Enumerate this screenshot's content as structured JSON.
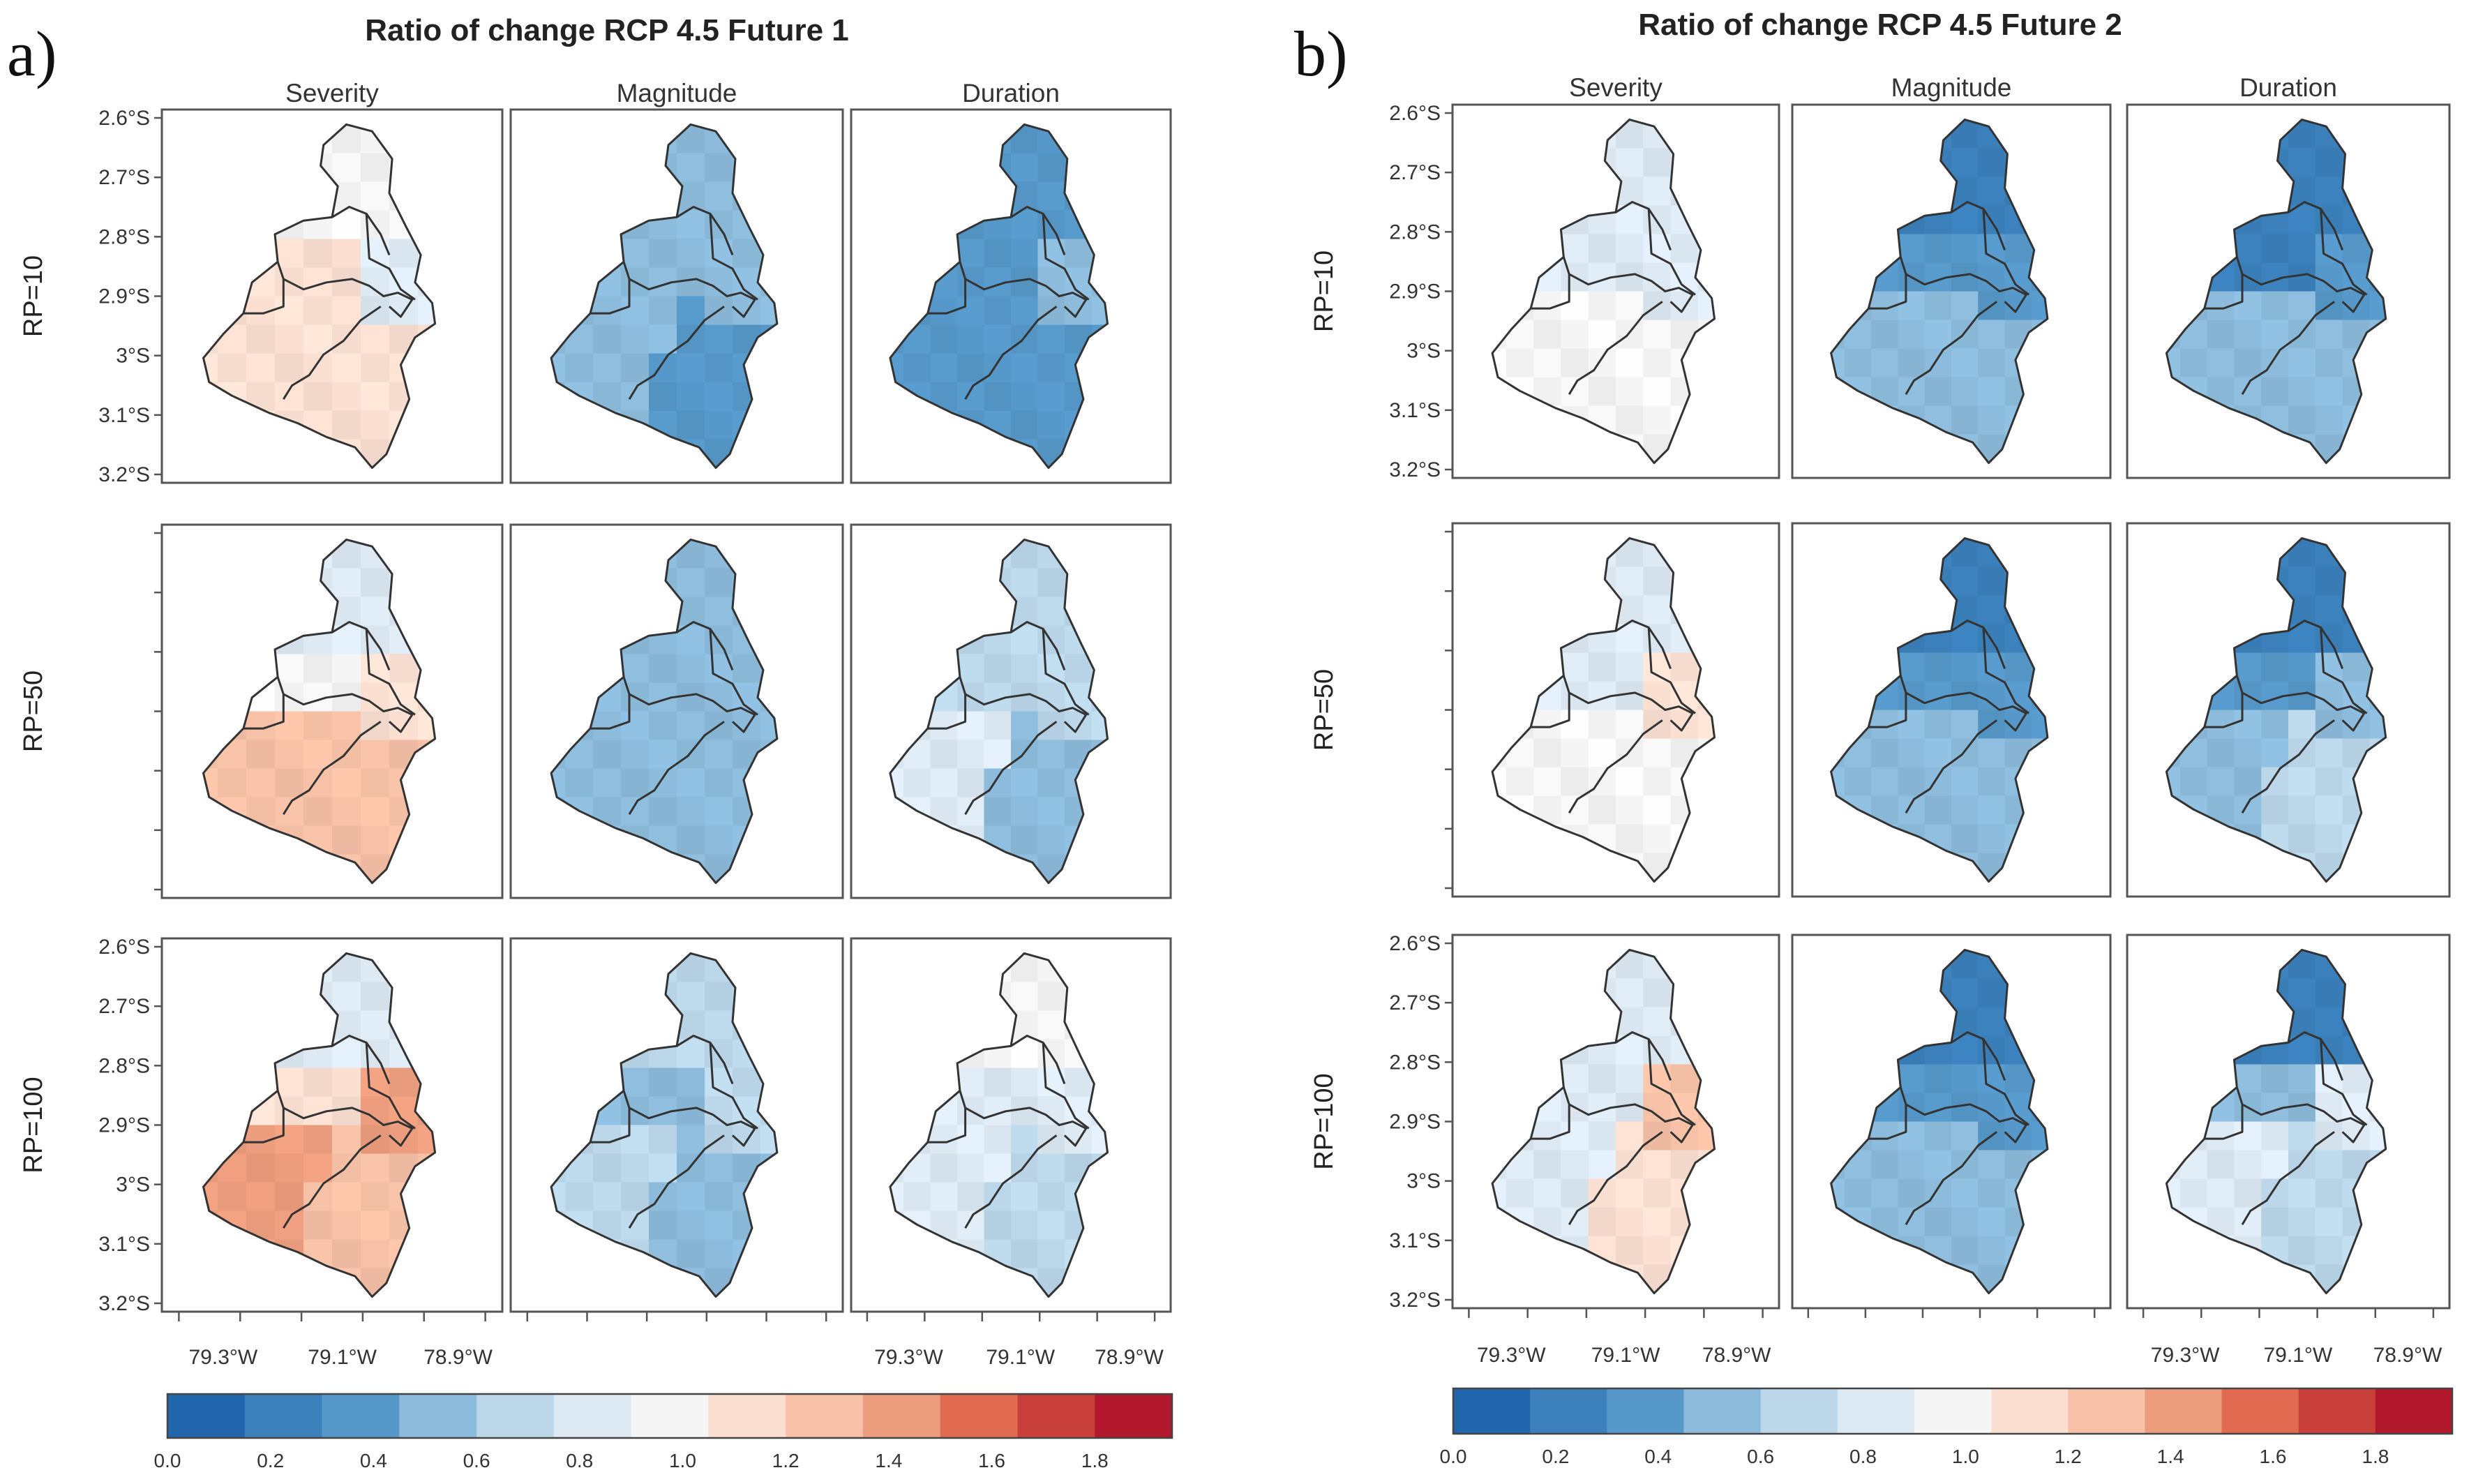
{
  "columns": [
    "Severity",
    "Magnitude",
    "Duration"
  ],
  "rows": [
    "RP=10",
    "RP=50",
    "RP=100"
  ],
  "lat_ticks": [
    "2.6°S",
    "2.7°S",
    "2.8°S",
    "2.9°S",
    "3°S",
    "3.1°S",
    "3.2°S"
  ],
  "lon_ticks": [
    "79.3°W",
    "79.1°W",
    "78.9°W"
  ],
  "panels": [
    {
      "label": "a)",
      "title": "Ratio of change RCP 4.5 Future 1",
      "maps": [
        [
          {
            "north": 0.95,
            "east": 0.78,
            "center": 1.12,
            "southwest": 1.18,
            "southeast": 1.12
          },
          {
            "north": 0.48,
            "east": 0.45,
            "center": 0.45,
            "southwest": 0.52,
            "southeast": 0.44
          },
          {
            "north": 0.42,
            "east": 0.46,
            "center": 0.4,
            "southwest": 0.4,
            "southeast": 0.38
          }
        ],
        [
          {
            "north": 0.86,
            "east": 1.08,
            "center": 0.95,
            "southwest": 1.3,
            "southeast": 1.2
          },
          {
            "north": 0.55,
            "east": 0.5,
            "center": 0.52,
            "southwest": 0.55,
            "southeast": 0.52
          },
          {
            "north": 0.72,
            "east": 0.6,
            "center": 0.62,
            "southwest": 0.75,
            "southeast": 0.52
          }
        ],
        [
          {
            "north": 0.86,
            "east": 1.35,
            "center": 1.12,
            "southwest": 1.45,
            "southeast": 1.22
          },
          {
            "north": 0.7,
            "east": 0.62,
            "center": 0.58,
            "southwest": 0.72,
            "southeast": 0.52
          },
          {
            "north": 0.92,
            "east": 0.85,
            "center": 0.85,
            "southwest": 0.88,
            "southeast": 0.62
          }
        ]
      ]
    },
    {
      "label": "b)",
      "title": "Ratio of change RCP 4.5 Future 2",
      "maps": [
        [
          {
            "north": 0.82,
            "east": 0.8,
            "center": 0.88,
            "southwest": 0.95,
            "southeast": 0.93
          },
          {
            "north": 0.25,
            "east": 0.35,
            "center": 0.32,
            "southwest": 0.45,
            "southeast": 0.48
          },
          {
            "north": 0.25,
            "east": 0.4,
            "center": 0.28,
            "southwest": 0.55,
            "southeast": 0.48
          }
        ],
        [
          {
            "north": 0.82,
            "east": 1.1,
            "center": 0.88,
            "southwest": 0.92,
            "southeast": 0.95
          },
          {
            "north": 0.25,
            "east": 0.38,
            "center": 0.35,
            "southwest": 0.52,
            "southeast": 0.52
          },
          {
            "north": 0.25,
            "east": 0.48,
            "center": 0.38,
            "southwest": 0.58,
            "southeast": 0.6
          }
        ],
        [
          {
            "north": 0.82,
            "east": 1.2,
            "center": 0.88,
            "southwest": 0.86,
            "southeast": 1.1
          },
          {
            "north": 0.18,
            "east": 0.42,
            "center": 0.3,
            "southwest": 0.5,
            "southeast": 0.52
          },
          {
            "north": 0.25,
            "east": 0.75,
            "center": 0.55,
            "southwest": 0.8,
            "southeast": 0.72
          }
        ]
      ]
    }
  ],
  "colorbar": {
    "ticks": [
      "0.0",
      "0.2",
      "0.4",
      "0.6",
      "0.8",
      "1.0",
      "1.2",
      "1.4",
      "1.6",
      "1.8"
    ],
    "colors": [
      "#2166ac",
      "#3b80bb",
      "#5698c9",
      "#8cbbdb",
      "#bcd7ea",
      "#dde9f3",
      "#f5f5f5",
      "#fbe0d2",
      "#f6c1a7",
      "#ec9d7e",
      "#e06b51",
      "#c9403b",
      "#b2182b"
    ]
  }
}
